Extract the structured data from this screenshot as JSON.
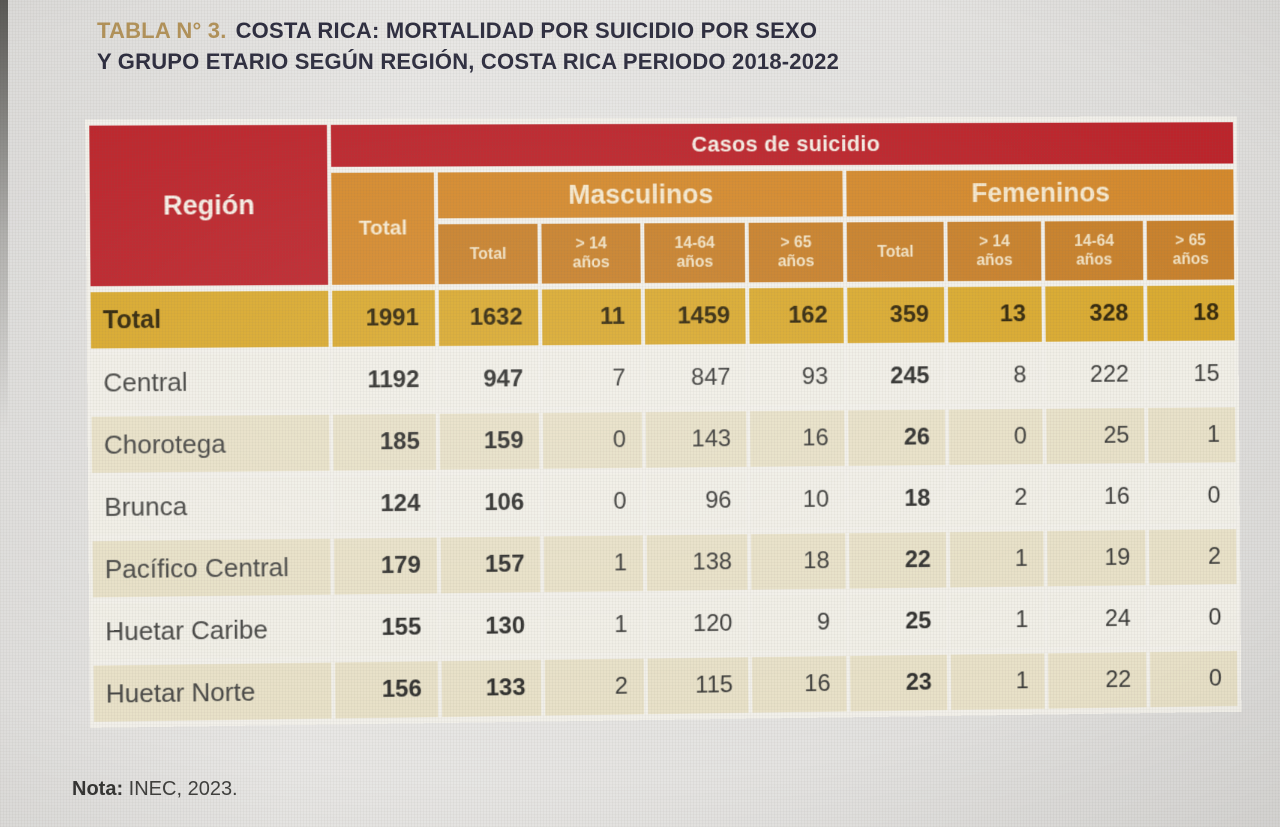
{
  "page": {
    "title_number": "TABLA N° 3.",
    "title_line1": "COSTA RICA: MORTALIDAD POR SUICIDIO POR SEXO",
    "title_line2": "Y GRUPO ETARIO SEGÚN REGIÓN, COSTA RICA PERIODO 2018-2022",
    "note_label": "Nota:",
    "note_value": "INEC, 2023."
  },
  "colors": {
    "header_red": "#bc242b",
    "header_orange": "#d4892c",
    "header_orange_dark": "#c8802a",
    "total_row_yellow": "#d9a92e",
    "row_beige": "#e8e1c8",
    "row_light": "#f1efe7",
    "title_gold": "#b29259"
  },
  "table": {
    "corner_header": "Región",
    "group_header": "Casos de suicidio",
    "total_col_header": "Total",
    "sex_groups": [
      {
        "label": "Masculinos",
        "columns": [
          "Total",
          "> 14\naños",
          "14-64\naños",
          "> 65\naños"
        ]
      },
      {
        "label": "Femeninos",
        "columns": [
          "Total",
          "> 14\naños",
          "14-64\naños",
          "> 65\naños"
        ]
      }
    ],
    "emphasis_columns": [
      0,
      1,
      5
    ],
    "rows": [
      {
        "region": "Total",
        "values": [
          1991,
          1632,
          11,
          1459,
          162,
          359,
          13,
          328,
          18
        ],
        "is_total": true
      },
      {
        "region": "Central",
        "values": [
          1192,
          947,
          7,
          847,
          93,
          245,
          8,
          222,
          15
        ]
      },
      {
        "region": "Chorotega",
        "values": [
          185,
          159,
          0,
          143,
          16,
          26,
          0,
          25,
          1
        ]
      },
      {
        "region": "Brunca",
        "values": [
          124,
          106,
          0,
          96,
          10,
          18,
          2,
          16,
          0
        ]
      },
      {
        "region": "Pacífico Central",
        "values": [
          179,
          157,
          1,
          138,
          18,
          22,
          1,
          19,
          2
        ]
      },
      {
        "region": "Huetar Caribe",
        "values": [
          155,
          130,
          1,
          120,
          9,
          25,
          1,
          24,
          0
        ]
      },
      {
        "region": "Huetar Norte",
        "values": [
          156,
          133,
          2,
          115,
          16,
          23,
          1,
          22,
          0
        ]
      }
    ]
  }
}
